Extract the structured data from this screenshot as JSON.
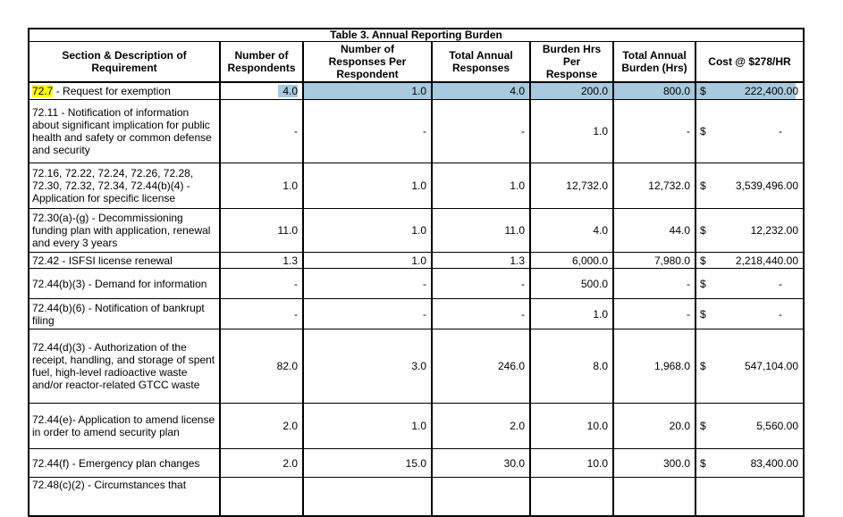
{
  "table": {
    "title": "Table 3. Annual Reporting Burden",
    "currency": "$",
    "columns": [
      "Section & Description of Requirement",
      "Number of Respondents",
      "Number of Responses Per Respondent",
      "Total Annual Responses",
      "Burden Hrs Per Response",
      "Total Annual Burden (Hrs)",
      "Cost @ $278/HR"
    ],
    "colors": {
      "row_highlight_fill": "#A9C9DE",
      "section_ref_highlight": "#FFFF00"
    },
    "rows": [
      {
        "desc_hl": "72.7",
        "desc_text": " - Request for exemption",
        "vals": [
          "4.0",
          "1.0",
          "4.0",
          "200.0",
          "800.0"
        ],
        "cost_val": "222,400.00",
        "highlight": true
      },
      {
        "desc_hl": "",
        "desc_text": "72.11 - Notification of information about significant implication for public health and safety or common defense and security",
        "vals": [
          "-",
          "-",
          "-",
          "1.0",
          "-"
        ],
        "cost_val": "-"
      },
      {
        "desc_hl": "",
        "desc_text": "72.16, 72.22, 72.24, 72.26, 72.28, 72.30, 72.32, 72.34, 72.44(b)(4) - Application for specific license",
        "vals": [
          "1.0",
          "1.0",
          "1.0",
          "12,732.0",
          "12,732.0"
        ],
        "cost_val": "3,539,496.00"
      },
      {
        "desc_hl": "",
        "desc_text": "72.30(a)-(g) - Decommissioning funding plan with application, renewal and every 3 years",
        "vals": [
          "11.0",
          "1.0",
          "11.0",
          "4.0",
          "44.0"
        ],
        "cost_val": "12,232.00"
      },
      {
        "desc_hl": "",
        "desc_text": "72.42 - ISFSI license renewal",
        "vals": [
          "1.3",
          "1.0",
          "1.3",
          "6,000.0",
          "7,980.0"
        ],
        "cost_val": "2,218,440.00"
      },
      {
        "desc_hl": "",
        "desc_text": "72.44(b)(3) - Demand for information",
        "vals": [
          "-",
          "-",
          "-",
          "500.0",
          "-"
        ],
        "cost_val": "-"
      },
      {
        "desc_hl": "",
        "desc_text": "72.44(b)(6) - Notification of bankrupt filing",
        "vals": [
          "-",
          "-",
          "-",
          "1.0",
          "-"
        ],
        "cost_val": "-"
      },
      {
        "desc_hl": "",
        "desc_text": "72.44(d)(3) - Authorization of the receipt, handling, and storage of spent fuel, high-level radioactive waste and/or reactor-related GTCC waste",
        "vals": [
          "82.0",
          "3.0",
          "246.0",
          "8.0",
          "1,968.0"
        ],
        "cost_val": "547,104.00"
      },
      {
        "desc_hl": "",
        "desc_text": "72.44(e)- Application to amend license in order to amend security plan",
        "vals": [
          "2.0",
          "1.0",
          "2.0",
          "10.0",
          "20.0"
        ],
        "cost_val": "5,560.00"
      },
      {
        "desc_hl": "",
        "desc_text": "72.44(f) - Emergency plan changes",
        "vals": [
          "2.0",
          "15.0",
          "30.0",
          "10.0",
          "300.0"
        ],
        "cost_val": "83,400.00"
      },
      {
        "desc_hl": "",
        "desc_text": "72.48(c)(2) - Circumstances that",
        "vals": [
          "",
          "",
          "",
          "",
          ""
        ],
        "cost_val": ""
      }
    ]
  }
}
